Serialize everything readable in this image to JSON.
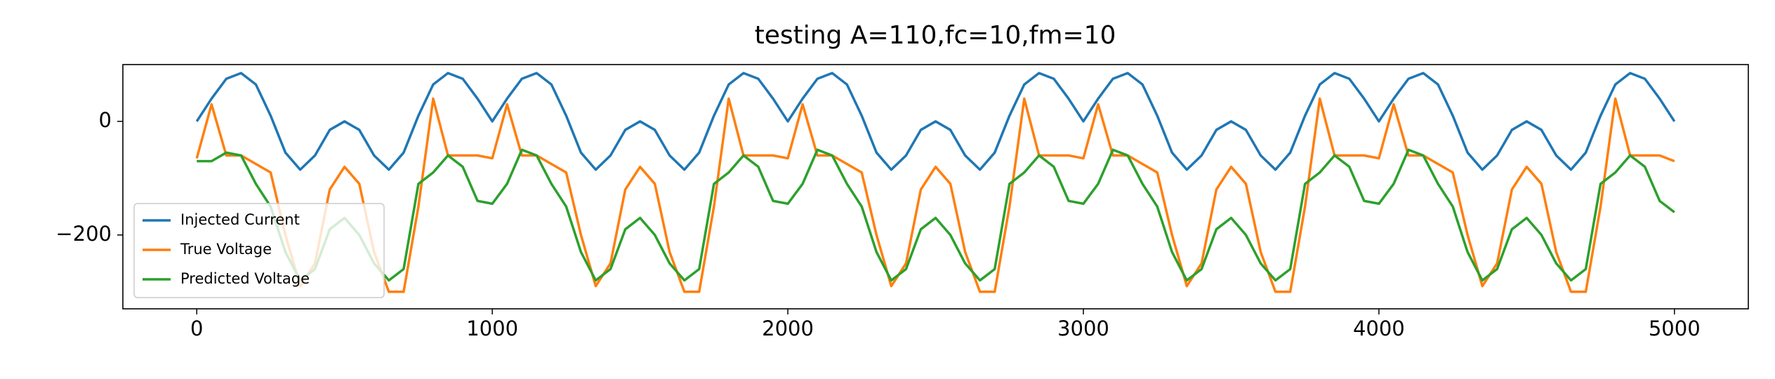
{
  "chart_data": {
    "type": "line",
    "title": "testing A=110,fc=10,fm=10",
    "x": [
      0,
      50,
      100,
      150,
      200,
      250,
      300,
      350,
      400,
      450,
      500,
      550,
      600,
      650,
      700,
      750,
      800,
      850,
      900,
      950,
      1000,
      1050,
      1100,
      1150,
      1200,
      1250,
      1300,
      1350,
      1400,
      1450,
      1500,
      1550,
      1600,
      1650,
      1700,
      1750,
      1800,
      1850,
      1900,
      1950,
      2000,
      2050,
      2100,
      2150,
      2200,
      2250,
      2300,
      2350,
      2400,
      2450,
      2500,
      2550,
      2600,
      2650,
      2700,
      2750,
      2800,
      2850,
      2900,
      2950,
      3000,
      3050,
      3100,
      3150,
      3200,
      3250,
      3300,
      3350,
      3400,
      3450,
      3500,
      3550,
      3600,
      3650,
      3700,
      3750,
      3800,
      3850,
      3900,
      3950,
      4000,
      4050,
      4100,
      4150,
      4200,
      4250,
      4300,
      4350,
      4400,
      4450,
      4500,
      4550,
      4600,
      4650,
      4700,
      4750,
      4800,
      4850,
      4900,
      4950,
      5000
    ],
    "series": [
      {
        "name": "Injected Current",
        "color": "#1f77b4",
        "values": [
          0,
          40,
          75,
          85,
          65,
          10,
          -55,
          -85,
          -60,
          -15,
          0,
          -15,
          -60,
          -85,
          -55,
          10,
          65,
          85,
          75,
          40,
          0,
          40,
          75,
          85,
          65,
          10,
          -55,
          -85,
          -60,
          -15,
          0,
          -15,
          -60,
          -85,
          -55,
          10,
          65,
          85,
          75,
          40,
          0,
          40,
          75,
          85,
          65,
          10,
          -55,
          -85,
          -60,
          -15,
          0,
          -15,
          -60,
          -85,
          -55,
          10,
          65,
          85,
          75,
          40,
          0,
          40,
          75,
          85,
          65,
          10,
          -55,
          -85,
          -60,
          -15,
          0,
          -15,
          -60,
          -85,
          -55,
          10,
          65,
          85,
          75,
          40,
          0,
          40,
          75,
          85,
          65,
          10,
          -55,
          -85,
          -60,
          -15,
          0,
          -15,
          -60,
          -85,
          -55,
          10,
          65,
          85,
          75,
          40,
          0
        ]
      },
      {
        "name": "True Voltage",
        "color": "#ff7f0e",
        "values": [
          -65,
          30,
          -60,
          -60,
          -75,
          -90,
          -200,
          -290,
          -250,
          -120,
          -80,
          -110,
          -230,
          -300,
          -300,
          -150,
          40,
          -60,
          -60,
          -60,
          -65,
          30,
          -60,
          -60,
          -75,
          -90,
          -200,
          -290,
          -250,
          -120,
          -80,
          -110,
          -230,
          -300,
          -300,
          -150,
          40,
          -60,
          -60,
          -60,
          -65,
          30,
          -60,
          -60,
          -75,
          -90,
          -200,
          -290,
          -250,
          -120,
          -80,
          -110,
          -230,
          -300,
          -300,
          -150,
          40,
          -60,
          -60,
          -60,
          -65,
          30,
          -60,
          -60,
          -75,
          -90,
          -200,
          -290,
          -250,
          -120,
          -80,
          -110,
          -230,
          -300,
          -300,
          -150,
          40,
          -60,
          -60,
          -60,
          -65,
          30,
          -60,
          -60,
          -75,
          -90,
          -200,
          -290,
          -250,
          -120,
          -80,
          -110,
          -230,
          -300,
          -300,
          -150,
          40,
          -60,
          -60,
          -60,
          -70
        ]
      },
      {
        "name": "Predicted Voltage",
        "color": "#2ca02c",
        "values": [
          -70,
          -70,
          -55,
          -60,
          -110,
          -150,
          -230,
          -280,
          -260,
          -190,
          -170,
          -200,
          -250,
          -280,
          -260,
          -110,
          -90,
          -60,
          -80,
          -140,
          -145,
          -110,
          -50,
          -60,
          -110,
          -150,
          -230,
          -280,
          -260,
          -190,
          -170,
          -200,
          -250,
          -280,
          -260,
          -110,
          -90,
          -60,
          -80,
          -140,
          -145,
          -110,
          -50,
          -60,
          -110,
          -150,
          -230,
          -280,
          -260,
          -190,
          -170,
          -200,
          -250,
          -280,
          -260,
          -110,
          -90,
          -60,
          -80,
          -140,
          -145,
          -110,
          -50,
          -60,
          -110,
          -150,
          -230,
          -280,
          -260,
          -190,
          -170,
          -200,
          -250,
          -280,
          -260,
          -110,
          -90,
          -60,
          -80,
          -140,
          -145,
          -110,
          -50,
          -60,
          -110,
          -150,
          -230,
          -280,
          -260,
          -190,
          -170,
          -200,
          -250,
          -280,
          -260,
          -110,
          -90,
          -60,
          -80,
          -140,
          -160
        ]
      }
    ],
    "xlim": [
      -250,
      5250
    ],
    "xticks": [
      0,
      1000,
      2000,
      3000,
      4000,
      5000
    ],
    "ylim": [
      -330,
      100
    ],
    "yticks": [
      {
        "value": -200,
        "label": "−200"
      },
      0
    ],
    "legend": "lower left"
  }
}
